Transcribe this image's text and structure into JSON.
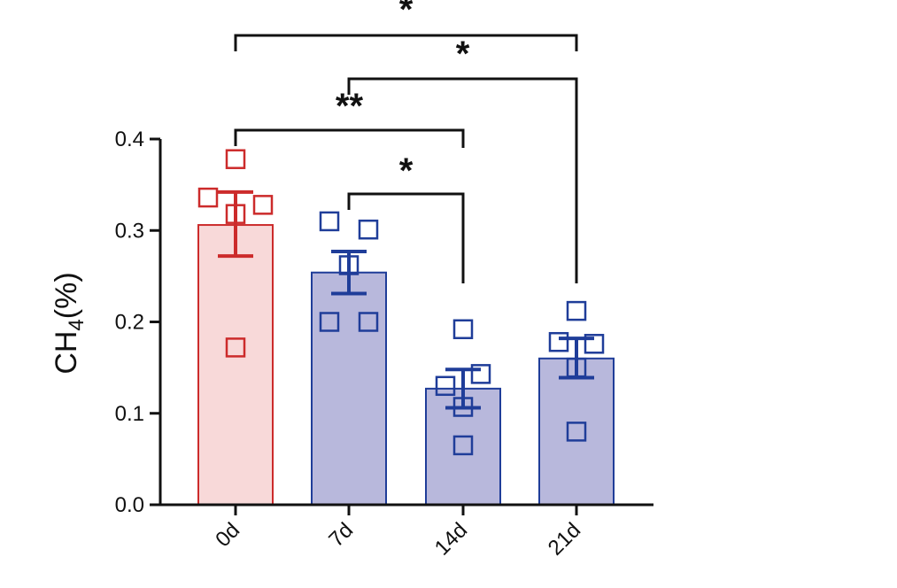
{
  "chart_data": {
    "type": "bar",
    "ylabel": "CH",
    "ylabel_sub": "4",
    "ylabel_suffix": "(%)",
    "ylim": [
      0,
      0.4
    ],
    "yticks": [
      0.0,
      0.1,
      0.2,
      0.3,
      0.4
    ],
    "ytick_labels": [
      "0.0",
      "0.1",
      "0.2",
      "0.3",
      "0.4"
    ],
    "categories": [
      "0d",
      "7d",
      "14d",
      "21d"
    ],
    "values": [
      0.306,
      0.254,
      0.127,
      0.16
    ],
    "error_upper": [
      0.342,
      0.277,
      0.148,
      0.182
    ],
    "error_lower": [
      0.272,
      0.231,
      0.106,
      0.139
    ],
    "points": [
      [
        0.378,
        0.336,
        0.328,
        0.318,
        0.172
      ],
      [
        0.31,
        0.301,
        0.262,
        0.2,
        0.2
      ],
      [
        0.192,
        0.143,
        0.13,
        0.107,
        0.065
      ],
      [
        0.212,
        0.178,
        0.176,
        0.15,
        0.08
      ]
    ],
    "colors": {
      "fill": [
        "#f8d9d9",
        "#b8b8dc",
        "#b8b8dc",
        "#b8b8dc"
      ],
      "stroke": [
        "#cc2b2b",
        "#1f3d99",
        "#1f3d99",
        "#1f3d99"
      ],
      "axis": "#111111"
    },
    "significance": [
      {
        "from": 0,
        "to": 3,
        "label": "*"
      },
      {
        "from": 1,
        "to": 3,
        "label": "*"
      },
      {
        "from": 0,
        "to": 2,
        "label": "**"
      },
      {
        "from": 1,
        "to": 2,
        "label": "*"
      }
    ]
  }
}
